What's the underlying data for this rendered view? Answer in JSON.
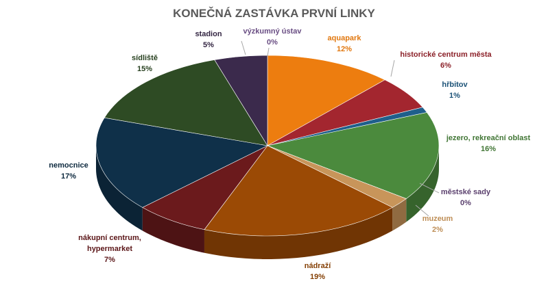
{
  "chart_data": {
    "type": "pie",
    "title": "KONEČNÁ ZASTÁVKA PRVNÍ LINKY",
    "categories": [
      "výzkumný ústav",
      "aquapark",
      "historické centrum města",
      "hřbitov",
      "jezero, rekreační oblast",
      "městské sady",
      "muzeum",
      "nádraží",
      "nákupní centrum, hypermarket",
      "nemocnice",
      "sídliště",
      "stadion"
    ],
    "values": [
      0,
      12,
      6,
      1,
      16,
      0,
      2,
      19,
      7,
      17,
      15,
      5
    ],
    "value_labels": [
      "0%",
      "12%",
      "6%",
      "1%",
      "16%",
      "0%",
      "2%",
      "19%",
      "7%",
      "17%",
      "15%",
      "5%"
    ],
    "colors": [
      "#7b5a9a",
      "#ed7d0f",
      "#a3262f",
      "#1f5f8b",
      "#4b8a3d",
      "#6a4a80",
      "#c8955a",
      "#9b4a05",
      "#6b1a1c",
      "#0f3049",
      "#2e4b24",
      "#3b2a4c"
    ]
  }
}
